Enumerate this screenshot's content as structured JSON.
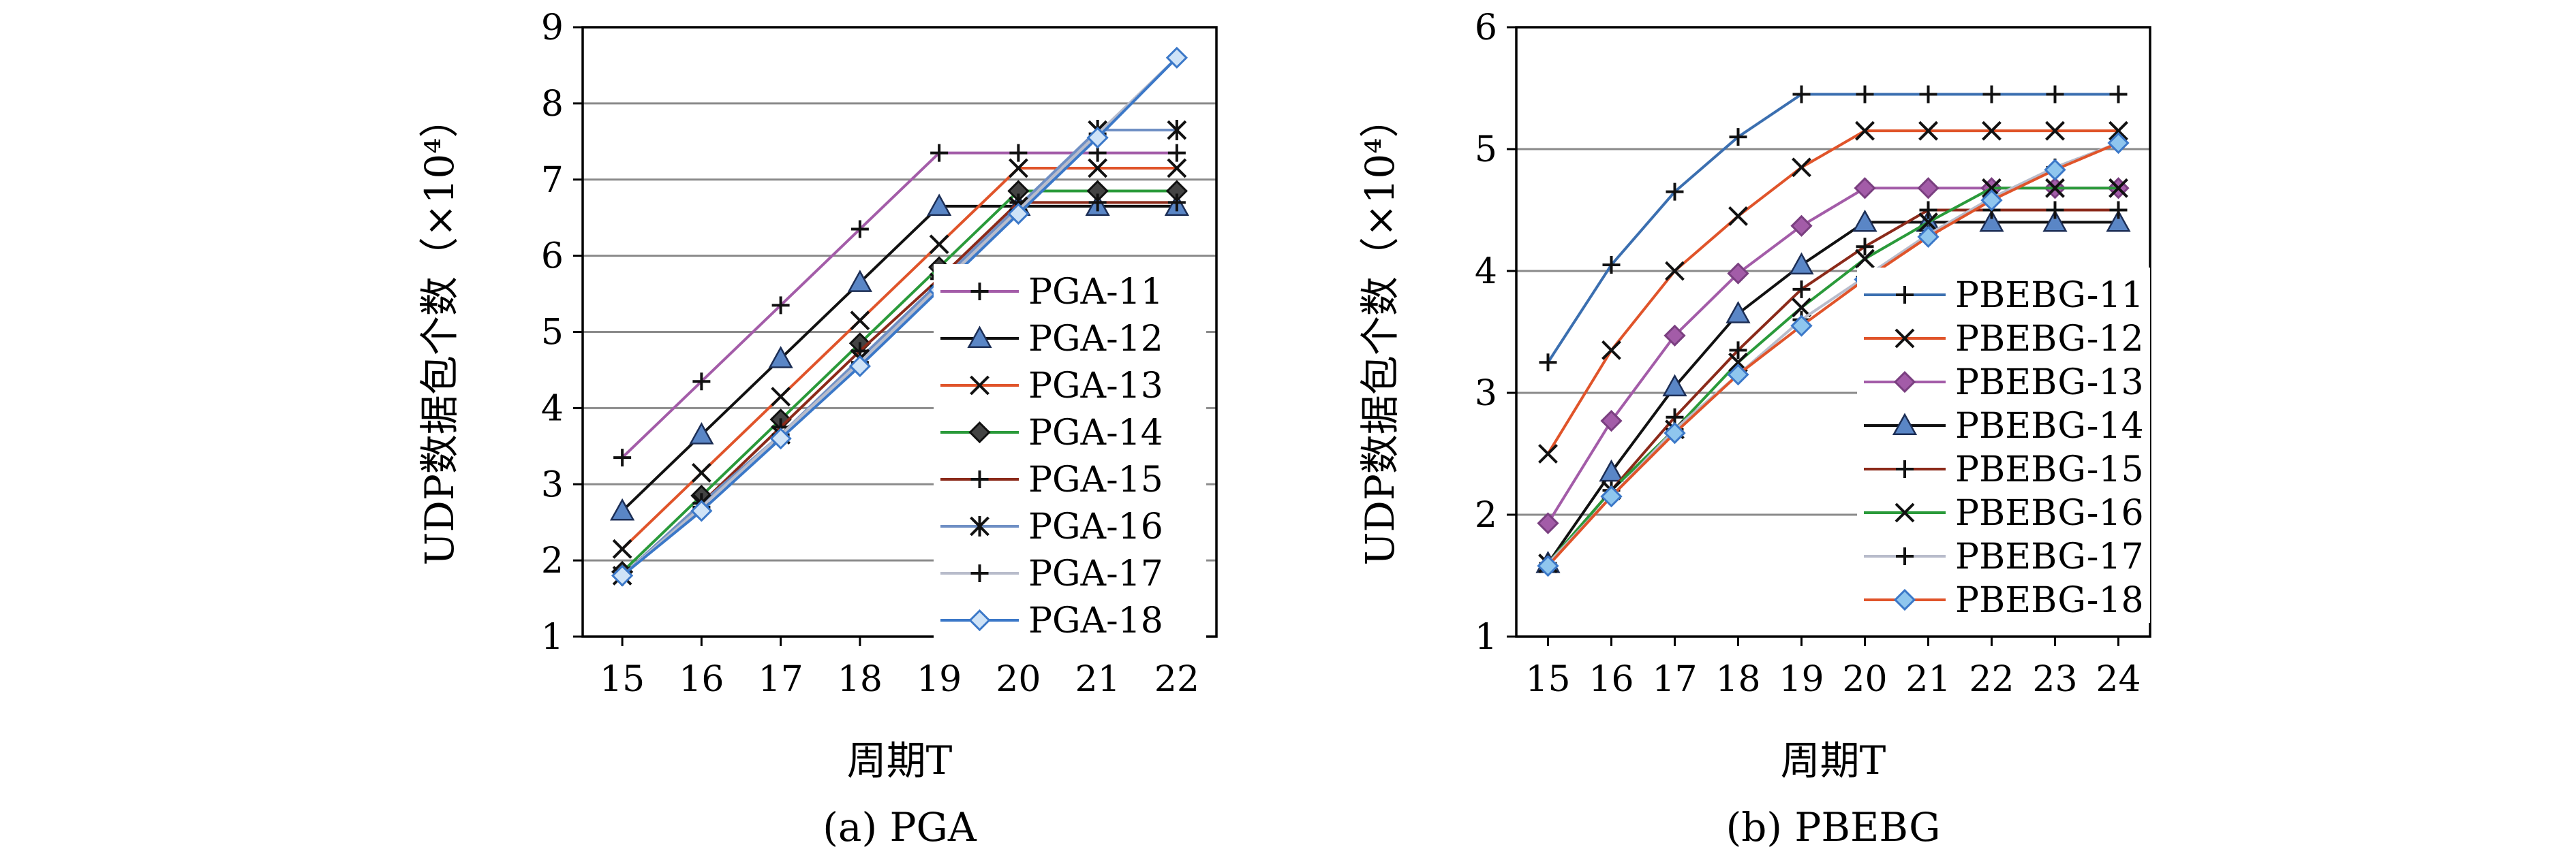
{
  "chart_data": [
    {
      "type": "line",
      "caption": "(a) PGA",
      "xlabel": "周期T",
      "ylabel": "UDP数据包个数（×10⁴）",
      "x": [
        15,
        16,
        17,
        18,
        19,
        20,
        21,
        22
      ],
      "ylim": [
        1,
        9
      ],
      "yticks": [
        1,
        2,
        3,
        4,
        5,
        6,
        7,
        8,
        9
      ],
      "grid": "horizontal",
      "legend_position": "right",
      "series": [
        {
          "name": "PGA-11",
          "color": "#a35ca8",
          "marker": "plus",
          "values": [
            3.35,
            4.35,
            5.35,
            6.35,
            7.35,
            7.35,
            7.35,
            7.35
          ]
        },
        {
          "name": "PGA-12",
          "color": "#111111",
          "marker": "triangle",
          "values": [
            2.65,
            3.65,
            4.65,
            5.65,
            6.65,
            6.65,
            6.65,
            6.65
          ]
        },
        {
          "name": "PGA-13",
          "color": "#e0542a",
          "marker": "x",
          "values": [
            2.15,
            3.15,
            4.15,
            5.15,
            6.15,
            7.15,
            7.15,
            7.15
          ]
        },
        {
          "name": "PGA-14",
          "color": "#2a9a3a",
          "marker": "diamond",
          "values": [
            1.85,
            2.85,
            3.85,
            4.85,
            5.85,
            6.85,
            6.85,
            6.85
          ]
        },
        {
          "name": "PGA-15",
          "color": "#8b2a1a",
          "marker": "plus",
          "values": [
            1.8,
            2.75,
            3.75,
            4.75,
            5.7,
            6.7,
            6.7,
            6.7
          ]
        },
        {
          "name": "PGA-16",
          "color": "#6f8fc4",
          "marker": "asterisk",
          "values": [
            1.8,
            2.75,
            3.65,
            4.65,
            5.65,
            6.65,
            7.65,
            7.65
          ]
        },
        {
          "name": "PGA-17",
          "color": "#b8bccb",
          "marker": "plus",
          "values": [
            1.8,
            2.7,
            3.65,
            4.6,
            5.6,
            6.6,
            7.6,
            8.6
          ]
        },
        {
          "name": "PGA-18",
          "color": "#3b78c8",
          "marker": "diamond",
          "values": [
            1.8,
            2.65,
            3.6,
            4.55,
            5.55,
            6.55,
            7.55,
            8.6
          ]
        }
      ]
    },
    {
      "type": "line",
      "caption": "(b) PBEBG",
      "xlabel": "周期T",
      "ylabel": "UDP数据包个数（×10⁴）",
      "x": [
        15,
        16,
        17,
        18,
        19,
        20,
        21,
        22,
        23,
        24
      ],
      "ylim": [
        1,
        6
      ],
      "yticks": [
        1,
        2,
        3,
        4,
        5,
        6
      ],
      "grid": "horizontal",
      "legend_position": "bottom-right",
      "series": [
        {
          "name": "PBEBG-11",
          "color": "#3b6fb0",
          "marker": "plus",
          "values": [
            3.25,
            4.05,
            4.65,
            5.1,
            5.45,
            5.45,
            5.45,
            5.45,
            5.45,
            5.45
          ]
        },
        {
          "name": "PBEBG-12",
          "color": "#e0542a",
          "marker": "x",
          "values": [
            2.5,
            3.35,
            4.0,
            4.45,
            4.85,
            5.15,
            5.15,
            5.15,
            5.15,
            5.15
          ]
        },
        {
          "name": "PBEBG-13",
          "color": "#a35ca8",
          "marker": "diamond",
          "values": [
            1.93,
            2.77,
            3.47,
            3.98,
            4.37,
            4.68,
            4.68,
            4.68,
            4.68,
            4.68
          ]
        },
        {
          "name": "PBEBG-14",
          "color": "#111111",
          "marker": "triangle",
          "values": [
            1.6,
            2.35,
            3.05,
            3.65,
            4.05,
            4.4,
            4.4,
            4.4,
            4.4,
            4.4
          ]
        },
        {
          "name": "PBEBG-15",
          "color": "#8b2a1a",
          "marker": "plus",
          "values": [
            1.6,
            2.2,
            2.8,
            3.35,
            3.85,
            4.2,
            4.5,
            4.5,
            4.5,
            4.5
          ]
        },
        {
          "name": "PBEBG-16",
          "color": "#2a9a3a",
          "marker": "x",
          "values": [
            1.6,
            2.2,
            2.7,
            3.25,
            3.7,
            4.1,
            4.4,
            4.68,
            4.68,
            4.68
          ]
        },
        {
          "name": "PBEBG-17",
          "color": "#b8bccb",
          "marker": "plus",
          "values": [
            1.6,
            2.15,
            2.7,
            3.15,
            3.6,
            3.95,
            4.3,
            4.6,
            4.85,
            5.05
          ]
        },
        {
          "name": "PBEBG-18",
          "color": "#e0542a",
          "marker": "diamond",
          "values": [
            1.58,
            2.15,
            2.67,
            3.15,
            3.55,
            3.93,
            4.28,
            4.58,
            4.83,
            5.05
          ]
        }
      ]
    }
  ]
}
